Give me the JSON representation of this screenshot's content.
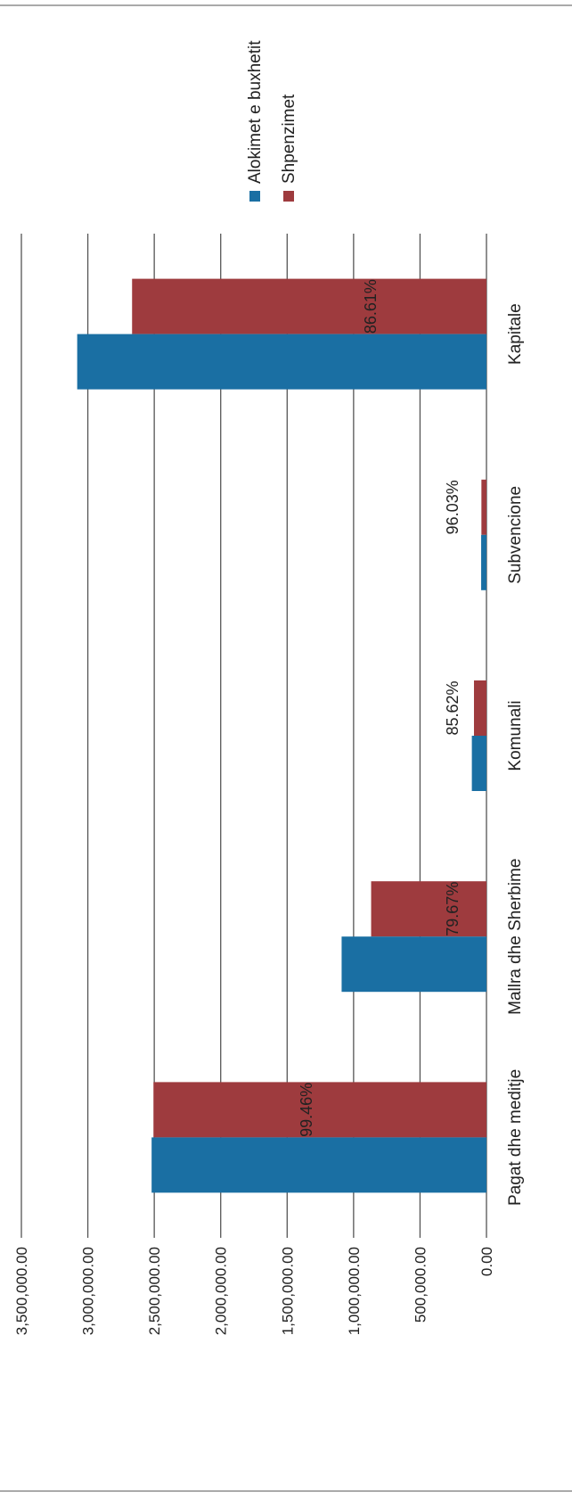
{
  "chart_data": {
    "type": "bar",
    "orientation": "rotated-90",
    "categories": [
      "Pagat dhe meditje",
      "Mallra dhe Sherbime",
      "Komunali",
      "Subvencione",
      "Kapitale"
    ],
    "series": [
      {
        "name": "Alokimet e buxhetit",
        "color": "#1a6fa3",
        "values": [
          2520000,
          1090000,
          110000,
          40000,
          3080000
        ]
      },
      {
        "name": "Shpenzimet",
        "color": "#9e3b3e",
        "values": [
          2506000,
          868000,
          94000,
          38000,
          2667000
        ]
      }
    ],
    "data_labels": [
      "99.46%",
      "79.67%",
      "85.62%",
      "96.03%",
      "86.61%"
    ],
    "ylim": [
      0,
      3500000
    ],
    "yticks": [
      "0.00",
      "500,000.00",
      "1,000,000.00",
      "1,500,000.00",
      "2,000,000.00",
      "2,500,000.00",
      "3,000,000.00",
      "3,500,000.00"
    ],
    "grid": true,
    "legend_position": "top"
  }
}
